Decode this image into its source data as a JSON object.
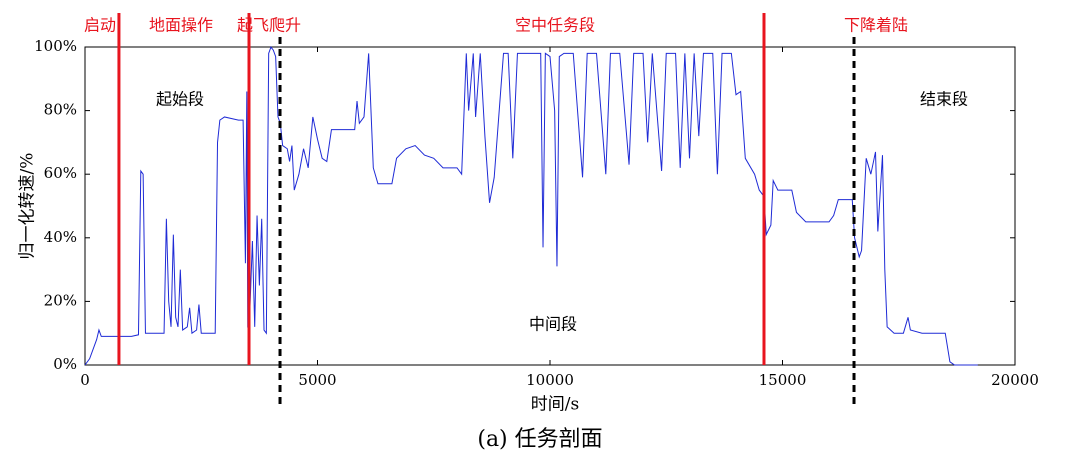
{
  "chart_data": {
    "type": "line",
    "caption": "(a) 任务剖面",
    "xlabel": "时间/s",
    "ylabel": "归一化转速/%",
    "xlim": [
      0,
      20000
    ],
    "xticks": [
      0,
      5000,
      10000,
      15000,
      20000
    ],
    "ylim": [
      0,
      100
    ],
    "yticks": [
      {
        "value": 0,
        "label": "0%"
      },
      {
        "value": 20,
        "label": "20%"
      },
      {
        "value": 40,
        "label": "40%"
      },
      {
        "value": 60,
        "label": "60%"
      },
      {
        "value": 80,
        "label": "80%"
      },
      {
        "value": 100,
        "label": "100%"
      }
    ],
    "color": "#1f2bd6",
    "phases": [
      "启动",
      "地面操作",
      "起飞爬升",
      "空中任务段",
      "下降着陆"
    ],
    "segments": [
      "起始段",
      "中间段",
      "结束段"
    ],
    "vlines": [
      {
        "x": 730,
        "style": "solid",
        "color": "#e8141e"
      },
      {
        "x": 3527,
        "style": "solid",
        "color": "#e8141e"
      },
      {
        "x": 4194,
        "style": "dashed",
        "color": "#000000"
      },
      {
        "x": 14602,
        "style": "solid",
        "color": "#e8141e"
      },
      {
        "x": 16538,
        "style": "dashed",
        "color": "#000000"
      }
    ],
    "x": [
      0,
      100,
      250,
      300,
      350,
      730,
      1000,
      1150,
      1200,
      1250,
      1300,
      1600,
      1700,
      1750,
      1800,
      1850,
      1900,
      1950,
      2000,
      2050,
      2100,
      2200,
      2250,
      2300,
      2400,
      2450,
      2500,
      2750,
      2800,
      2850,
      2900,
      3000,
      3300,
      3400,
      3450,
      3480,
      3500,
      3527,
      3600,
      3650,
      3700,
      3750,
      3800,
      3850,
      3900,
      3950,
      4000,
      4050,
      4100,
      4150,
      4200,
      4250,
      4350,
      4400,
      4450,
      4500,
      4600,
      4700,
      4800,
      4900,
      5000,
      5100,
      5200,
      5300,
      5500,
      5800,
      5850,
      5900,
      6000,
      6100,
      6150,
      6200,
      6300,
      6600,
      6700,
      6900,
      7100,
      7300,
      7500,
      7700,
      8000,
      8100,
      8200,
      8250,
      8350,
      8400,
      8500,
      8600,
      8700,
      8800,
      9000,
      9100,
      9200,
      9300,
      9500,
      9700,
      9800,
      9850,
      9900,
      10000,
      10100,
      10150,
      10200,
      10300,
      10500,
      10700,
      10800,
      11000,
      11200,
      11300,
      11500,
      11700,
      11800,
      12000,
      12100,
      12200,
      12400,
      12500,
      12700,
      12800,
      12900,
      13000,
      13100,
      13200,
      13300,
      13500,
      13600,
      13700,
      13900,
      14000,
      14100,
      14200,
      14400,
      14500,
      14602,
      14650,
      14750,
      14800,
      14900,
      15200,
      15300,
      15500,
      16000,
      16100,
      16200,
      16500,
      16550,
      16650,
      16700,
      16800,
      16900,
      17000,
      17050,
      17150,
      17200,
      17250,
      17400,
      17600,
      17700,
      17750,
      18000,
      18500,
      18600,
      18700,
      19200
    ],
    "values": [
      0,
      2,
      8,
      11,
      9,
      9,
      9,
      9.5,
      61,
      60,
      10,
      10,
      10,
      46,
      20,
      12,
      41,
      15,
      12,
      30,
      11,
      12,
      18,
      10,
      11,
      19,
      10,
      10,
      10,
      70,
      77,
      78,
      77,
      77,
      32,
      86,
      12,
      10,
      39,
      12,
      47,
      25,
      46,
      11,
      10,
      98,
      100,
      99,
      97,
      78,
      76,
      69,
      68,
      64,
      69,
      55,
      60,
      68,
      62,
      78,
      71,
      65,
      64,
      74,
      74,
      74,
      83,
      76,
      78,
      98,
      80,
      62,
      57,
      57,
      65,
      68,
      69,
      66,
      65,
      62,
      62,
      60,
      98,
      80,
      98,
      78,
      98,
      72,
      51,
      59,
      98,
      98,
      65,
      98,
      98,
      98,
      98,
      37,
      98,
      97,
      80,
      31,
      97,
      98,
      98,
      59,
      98,
      98,
      60,
      98,
      98,
      63,
      98,
      98,
      70,
      98,
      61,
      98,
      98,
      62,
      98,
      65,
      98,
      72,
      98,
      98,
      60,
      98,
      98,
      85,
      86,
      65,
      60,
      55,
      53,
      41,
      44,
      58,
      55,
      55,
      48,
      45,
      45,
      47,
      52,
      52,
      40,
      34,
      36,
      65,
      60,
      67,
      42,
      66,
      30,
      12,
      10,
      10,
      15,
      11,
      10,
      10,
      1,
      0,
      0
    ]
  }
}
